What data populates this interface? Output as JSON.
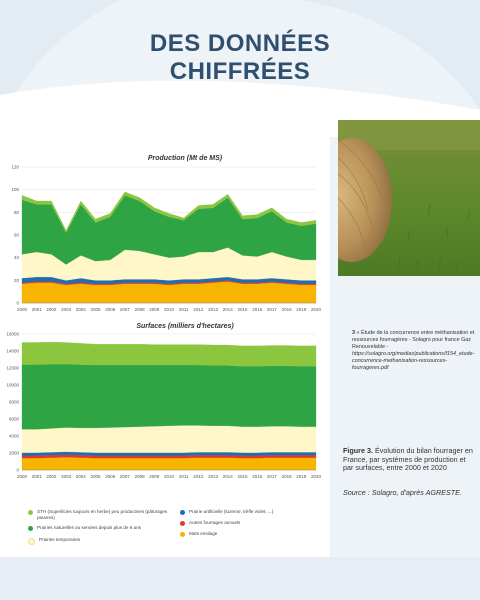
{
  "heading": {
    "line1": "DES DONNÉES",
    "line2": "CHIFFRÉES"
  },
  "colors": {
    "sth": "#8cc63f",
    "natural": "#2ea444",
    "temporary": "#fff7c8",
    "artificial": "#1e6fb0",
    "annual": "#e03a2f",
    "maize": "#f7b500"
  },
  "chart_data": [
    {
      "type": "area",
      "title": "Production (Mt de MS)",
      "x": [
        2000,
        2001,
        2002,
        2003,
        2004,
        2005,
        2006,
        2007,
        2008,
        2009,
        2010,
        2011,
        2012,
        2013,
        2014,
        2015,
        2016,
        2017,
        2018,
        2019,
        2020
      ],
      "ylim": [
        0,
        120
      ],
      "yticks": [
        0,
        20,
        40,
        60,
        80,
        100,
        120
      ],
      "series": [
        {
          "name": "Maïs ensilage",
          "values": [
            17,
            18,
            18,
            16,
            17,
            16,
            16,
            17,
            17,
            17,
            16,
            17,
            17,
            18,
            19,
            17,
            17,
            18,
            17,
            16,
            16
          ]
        },
        {
          "name": "Autres fourrages annuels",
          "values": [
            1,
            1,
            1,
            1,
            1,
            1,
            1,
            1,
            1,
            1,
            1,
            1,
            1,
            1,
            1,
            1,
            1,
            1,
            1,
            1,
            1
          ]
        },
        {
          "name": "Prairie artificielle (luzerne, trèfle violet, ...)",
          "values": [
            4,
            4,
            4,
            3,
            4,
            3,
            3,
            3,
            3,
            3,
            3,
            3,
            3,
            3,
            3,
            3,
            3,
            3,
            3,
            3,
            3
          ]
        },
        {
          "name": "Prairies temporaires",
          "values": [
            21,
            22,
            20,
            14,
            20,
            17,
            18,
            26,
            25,
            22,
            20,
            20,
            24,
            23,
            26,
            21,
            20,
            23,
            20,
            18,
            18
          ]
        },
        {
          "name": "Prairies naturelles ou semées depuis plus de 6 ans",
          "values": [
            48,
            42,
            44,
            28,
            45,
            34,
            38,
            48,
            44,
            38,
            36,
            32,
            38,
            39,
            44,
            32,
            34,
            36,
            30,
            30,
            32
          ]
        },
        {
          "name": "STH (Superficies toujours en herbe) peu productives (pâturages pauvres)",
          "values": [
            4,
            3,
            3,
            2,
            3,
            3,
            3,
            3,
            3,
            3,
            3,
            2,
            3,
            3,
            3,
            3,
            3,
            3,
            3,
            3,
            3
          ]
        }
      ]
    },
    {
      "type": "area",
      "title": "Surfaces (milliers d'hectares)",
      "x": [
        2000,
        2001,
        2002,
        2003,
        2004,
        2005,
        2006,
        2007,
        2008,
        2009,
        2010,
        2011,
        2012,
        2013,
        2014,
        2015,
        2016,
        2017,
        2018,
        2019,
        2020
      ],
      "ylim": [
        0,
        16000
      ],
      "yticks": [
        0,
        2000,
        4000,
        6000,
        8000,
        10000,
        12000,
        14000,
        16000
      ],
      "series": [
        {
          "name": "Maïs ensilage",
          "values": [
            1400,
            1400,
            1450,
            1500,
            1450,
            1400,
            1400,
            1400,
            1400,
            1400,
            1400,
            1400,
            1450,
            1450,
            1450,
            1400,
            1400,
            1450,
            1450,
            1450,
            1450
          ]
        },
        {
          "name": "Autres fourrages annuels",
          "values": [
            300,
            300,
            300,
            300,
            300,
            300,
            300,
            300,
            300,
            300,
            300,
            300,
            300,
            300,
            300,
            300,
            300,
            300,
            300,
            300,
            300
          ]
        },
        {
          "name": "Prairie artificielle (luzerne, trèfle violet, ...)",
          "values": [
            350,
            350,
            350,
            350,
            350,
            350,
            350,
            350,
            350,
            350,
            350,
            350,
            350,
            350,
            350,
            350,
            350,
            350,
            350,
            350,
            350
          ]
        },
        {
          "name": "Prairies temporaires",
          "values": [
            2750,
            2750,
            2800,
            2850,
            2850,
            2900,
            2950,
            3000,
            3050,
            3100,
            3150,
            3200,
            3150,
            3100,
            3100,
            3050,
            3050,
            3050,
            3050,
            3000,
            3000
          ]
        },
        {
          "name": "Prairies naturelles ou semées depuis plus de 6 ans",
          "values": [
            7600,
            7600,
            7550,
            7450,
            7450,
            7400,
            7350,
            7300,
            7250,
            7200,
            7150,
            7100,
            7100,
            7100,
            7100,
            7100,
            7100,
            7100,
            7100,
            7100,
            7100
          ]
        },
        {
          "name": "STH (Superficies toujours en herbe) peu productives (pâturages pauvres)",
          "values": [
            2600,
            2600,
            2600,
            2550,
            2500,
            2450,
            2450,
            2450,
            2450,
            2400,
            2400,
            2400,
            2400,
            2400,
            2400,
            2400,
            2400,
            2400,
            2400,
            2400,
            2400
          ]
        }
      ]
    }
  ],
  "legend": {
    "sth": "STH (Superficies toujours en herbe) peu productives (pâturages pauvres)",
    "natural": "Prairies naturelles ou semées depuis plus de 6 ans",
    "temporary": "Prairies temporaires",
    "artificial": "Prairie artificielle (luzerne, trèfle violet, ...)",
    "annual": "Autres fourrages annuels",
    "maize": "Maïs ensilage"
  },
  "note": {
    "marker": "3",
    "text": "« Étude de la concurrence entre méthanisation et ressources fourragères - Solagro pour france Gaz Renouvelable - ",
    "link": "https://solagro.org/medias/publications/f154_etude-concurrence-methanisation-ressources-fourrageres.pdf"
  },
  "caption": {
    "label": "Figure 3.",
    "text": " Évolution du bilan fourrager en France, par systèmes de production et par surfaces, entre 2000 et 2020"
  },
  "source": "Source : Solagro, d'après AGRESTE."
}
